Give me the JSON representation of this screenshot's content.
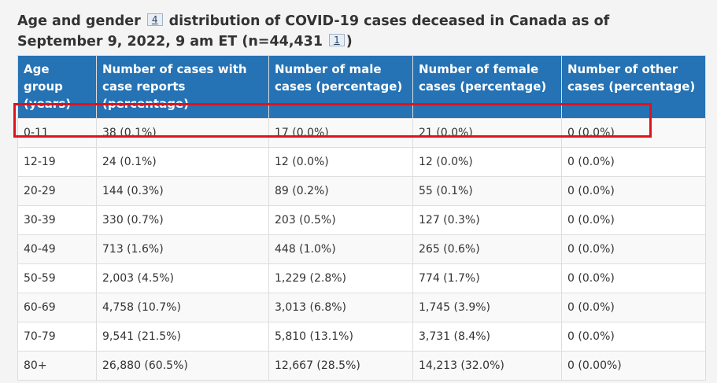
{
  "caption": {
    "part1": "Age and gender ",
    "footnote_a": "4",
    "part2": " distribution of COVID-19 cases deceased in Canada as of September 9, 2022, 9 am ET (n=44,431 ",
    "footnote_b": "1",
    "part3": ")"
  },
  "table": {
    "headers": [
      "Age group (years)",
      "Number of cases with case reports (percentage)",
      "Number of male cases (percentage)",
      "Number of female cases (percentage)",
      "Number of other cases (percentage)"
    ],
    "rows": [
      [
        "0-11",
        "38 (0.1%)",
        "17 (0.0%)",
        "21 (0.0%)",
        "0 (0.0%)"
      ],
      [
        "12-19",
        "24 (0.1%)",
        "12 (0.0%)",
        "12 (0.0%)",
        "0 (0.0%)"
      ],
      [
        "20-29",
        "144 (0.3%)",
        "89 (0.2%)",
        "55 (0.1%)",
        "0 (0.0%)"
      ],
      [
        "30-39",
        "330 (0.7%)",
        "203 (0.5%)",
        "127 (0.3%)",
        "0 (0.0%)"
      ],
      [
        "40-49",
        "713 (1.6%)",
        "448 (1.0%)",
        "265 (0.6%)",
        "0 (0.0%)"
      ],
      [
        "50-59",
        "2,003 (4.5%)",
        "1,229 (2.8%)",
        "774 (1.7%)",
        "0 (0.0%)"
      ],
      [
        "60-69",
        "4,758 (10.7%)",
        "3,013 (6.8%)",
        "1,745 (3.9%)",
        "0 (0.0%)"
      ],
      [
        "70-79",
        "9,541 (21.5%)",
        "5,810 (13.1%)",
        "3,731 (8.4%)",
        "0 (0.0%)"
      ],
      [
        "80+",
        "26,880 (60.5%)",
        "12,667 (28.5%)",
        "14,213 (32.0%)",
        "0 (0.00%)"
      ]
    ]
  },
  "colors": {
    "header_bg": "#2572b4",
    "highlight": "#e0121c"
  }
}
